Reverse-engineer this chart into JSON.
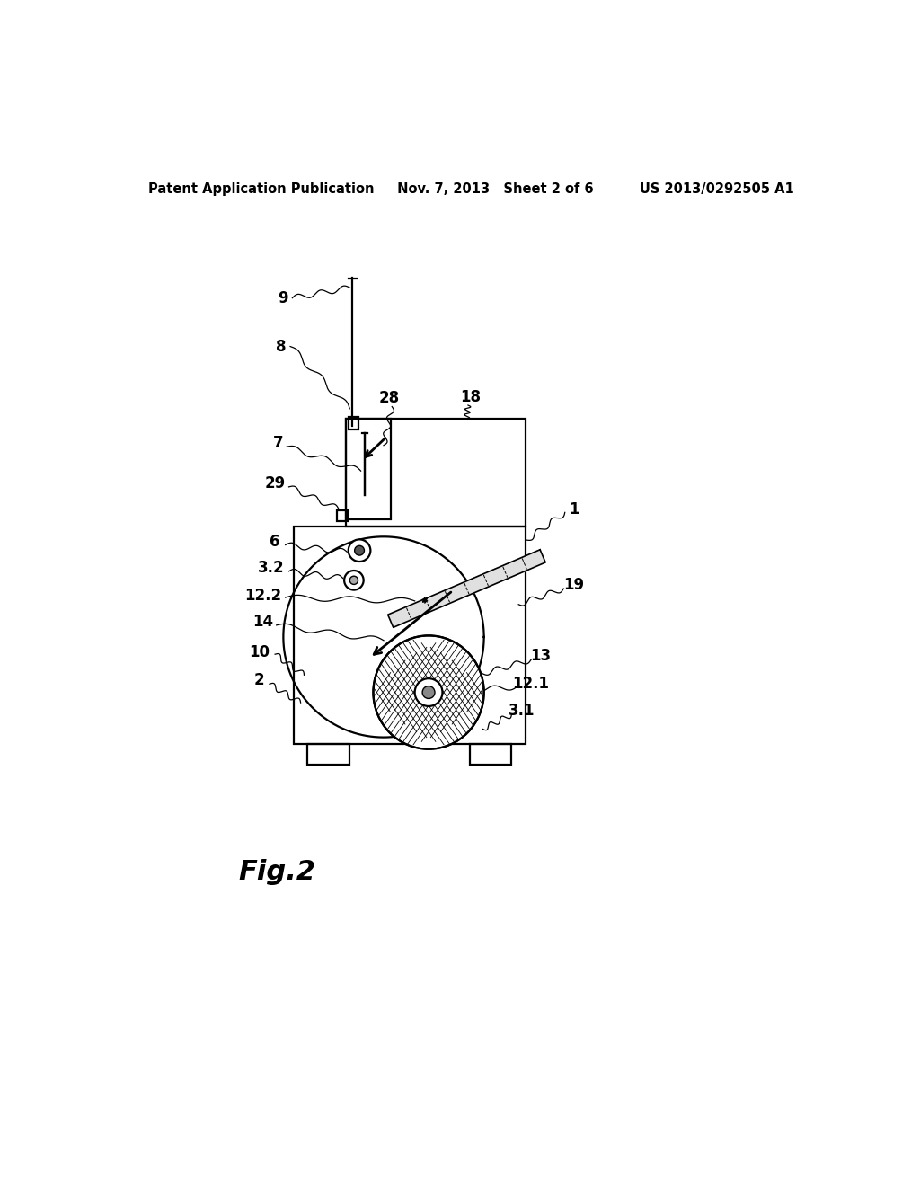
{
  "bg_color": "#ffffff",
  "line_color": "#000000",
  "header_text": "Patent Application Publication     Nov. 7, 2013   Sheet 2 of 6          US 2013/0292505 A1",
  "fig_label": "Fig.2",
  "header_fontsize": 10.5,
  "fig_label_fontsize": 22,
  "lw": 1.6
}
